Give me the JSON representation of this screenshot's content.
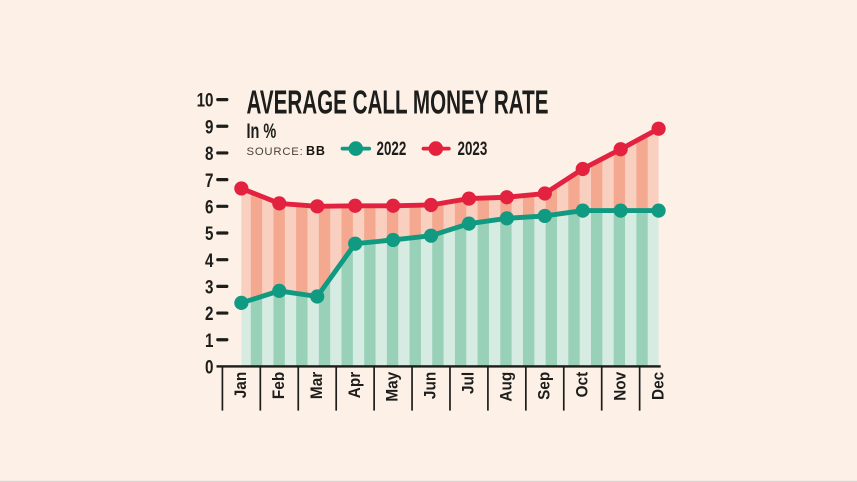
{
  "page": {
    "background_color": "#fdf1e7",
    "ink_color": "#1d1d1b",
    "bottom_edge_color": "#d9d5cf"
  },
  "header": {
    "title": "AVERAGE CALL MONEY RATE",
    "subtitle": "In %",
    "source_label": "SOURCE:",
    "source_value": "BB"
  },
  "legend": {
    "items": [
      {
        "label": "2022",
        "color": "#119a82"
      },
      {
        "label": "2023",
        "color": "#e3223f"
      }
    ]
  },
  "chart_data": {
    "type": "line",
    "title": "AVERAGE CALL MONEY RATE",
    "subtitle": "In %",
    "source": "BB",
    "xlabel": "",
    "ylabel": "In %",
    "ylim": [
      0,
      10
    ],
    "ytick_step": 1,
    "yticks": [
      0,
      1,
      2,
      3,
      4,
      5,
      6,
      7,
      8,
      9,
      10
    ],
    "grid": false,
    "legend_position": "top",
    "marker": "circle",
    "area_style": "striped-vertical-bands",
    "categories": [
      "Jan",
      "Feb",
      "Mar",
      "Apr",
      "May",
      "Jun",
      "Jul",
      "Aug",
      "Sep",
      "Oct",
      "Nov",
      "Dec"
    ],
    "series": [
      {
        "name": "2022",
        "line_color": "#119a82",
        "area_stripe_light": "#d6ebe2",
        "area_stripe_dark": "#98d0b8",
        "area_base": "axis",
        "values": [
          2.38,
          2.83,
          2.62,
          4.6,
          4.74,
          4.9,
          5.35,
          5.55,
          5.64,
          5.84,
          5.84,
          5.84
        ]
      },
      {
        "name": "2023",
        "line_color": "#e3223f",
        "area_stripe_light": "#f9cfc0",
        "area_stripe_dark": "#f4a88f",
        "area_base": "series-2022",
        "values": [
          6.67,
          6.11,
          6.0,
          6.02,
          6.02,
          6.05,
          6.29,
          6.34,
          6.48,
          7.4,
          8.14,
          8.91
        ]
      }
    ]
  }
}
